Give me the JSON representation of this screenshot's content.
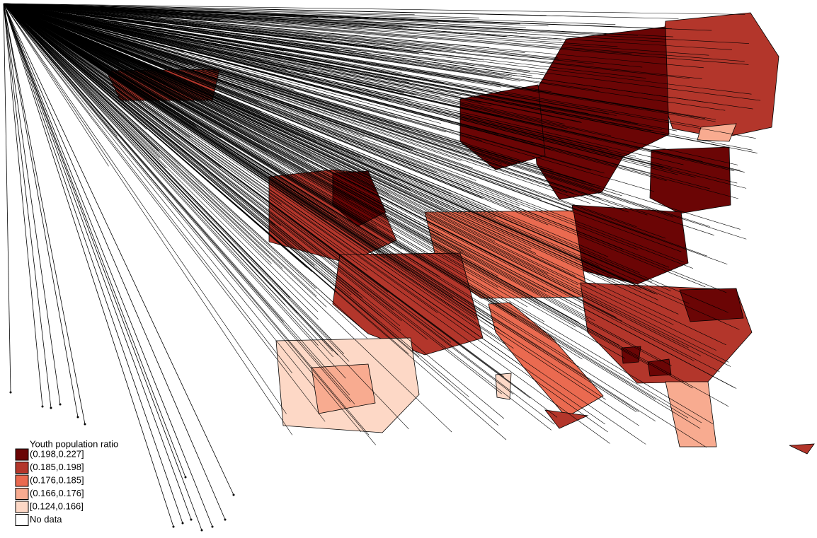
{
  "legend": {
    "title": "Youth population ratio",
    "items": [
      {
        "label": "(0.198,0.227]",
        "color": "#6b0505"
      },
      {
        "label": "(0.185,0.198]",
        "color": "#b3362b"
      },
      {
        "label": "(0.176,0.185]",
        "color": "#ea6a50"
      },
      {
        "label": "(0.166,0.176]",
        "color": "#f8ab90"
      },
      {
        "label": "[0.124,0.166]",
        "color": "#fdd8c6"
      },
      {
        "label": "No data",
        "color": "#ffffff"
      }
    ]
  }
}
